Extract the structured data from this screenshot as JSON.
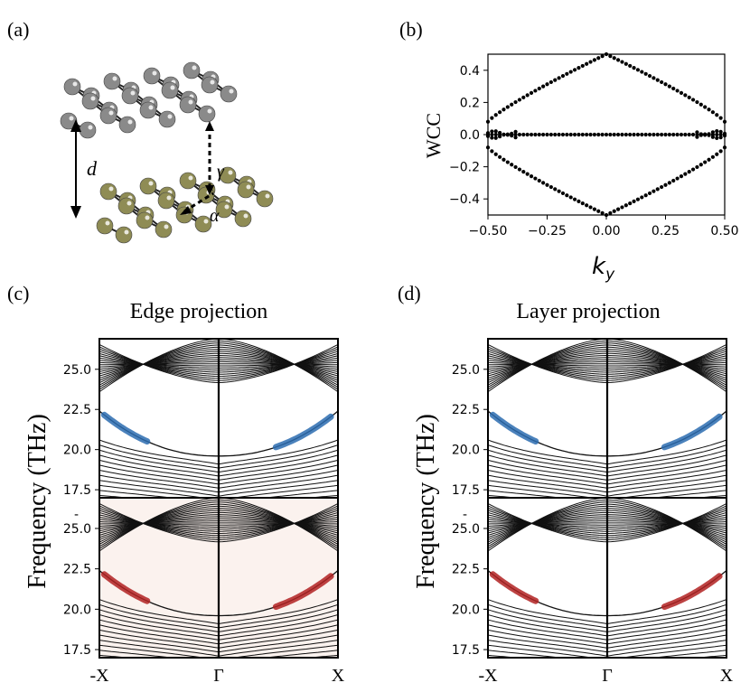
{
  "panels": {
    "a": {
      "label": "(a)",
      "symbols": {
        "d": "d",
        "gamma": "γ",
        "alpha": "α"
      },
      "colors": {
        "top_atoms": "#8a8a8a",
        "bottom_atoms": "#8f8c55",
        "bonds": "#222222",
        "arrow": "#000000"
      }
    },
    "b": {
      "label": "(b)",
      "ylabel": "WCC",
      "xlabel": "k",
      "xlabel_sub": "y",
      "xticks": [
        "−0.50",
        "−0.25",
        "0.00",
        "0.25",
        "0.50"
      ],
      "yticks": [
        "0.4",
        "0.2",
        "0.0",
        "−0.2",
        "−0.4"
      ]
    },
    "c": {
      "label": "(c)",
      "title": "Edge projection"
    },
    "d": {
      "label": "(d)",
      "title": "Layer projection"
    }
  },
  "band_axes": {
    "ylabel": "Frequency (THz)",
    "yticks_top": [
      "25.0",
      "22.5",
      "20.0",
      "17.5"
    ],
    "yticks_bottom": [
      "25.0",
      "22.5",
      "20.0",
      "17.5"
    ],
    "top_minus": "-",
    "xticks": [
      "-X",
      "Γ",
      "X"
    ],
    "colors": {
      "blue": "#2b6cb0",
      "red": "#b22222",
      "bands": "#111111"
    }
  },
  "chart_data": [
    {
      "type": "scatter",
      "title": "",
      "xlabel": "k_y",
      "ylabel": "WCC",
      "xlim": [
        -0.5,
        0.5
      ],
      "ylim": [
        -0.5,
        0.5
      ],
      "series": [
        {
          "name": "upper branch",
          "description": "WCC rising from ~0.08 at k_y=±0.5 to 0.5 at k_y=0"
        },
        {
          "name": "lower branch",
          "description": "WCC falling from ~-0.08 at k_y=±0.5 to -0.5 at k_y=0"
        },
        {
          "name": "flat branch",
          "description": "WCC ≈ 0.0 across all k_y"
        }
      ],
      "sample_points": {
        "x": [
          -0.5,
          -0.4,
          -0.3,
          -0.2,
          -0.1,
          0.0,
          0.1,
          0.2,
          0.3,
          0.4,
          0.5
        ],
        "upper": [
          0.08,
          0.17,
          0.26,
          0.33,
          0.4,
          0.5,
          0.4,
          0.33,
          0.26,
          0.17,
          0.08
        ],
        "lower": [
          -0.08,
          -0.17,
          -0.26,
          -0.33,
          -0.4,
          -0.5,
          -0.4,
          -0.33,
          -0.26,
          -0.17,
          -0.08
        ],
        "flat": [
          0,
          0,
          0,
          0,
          0,
          0,
          0,
          0,
          0,
          0,
          0
        ]
      }
    },
    {
      "type": "line",
      "title": "Edge projection",
      "ylabel": "Frequency (THz)",
      "ylim": [
        17,
        27
      ],
      "xticks": [
        "-X",
        "Γ",
        "X"
      ],
      "subplots": [
        "top: blue projection",
        "bottom: red projection"
      ]
    },
    {
      "type": "line",
      "title": "Layer projection",
      "ylabel": "Frequency (THz)",
      "ylim": [
        17,
        27
      ],
      "xticks": [
        "-X",
        "Γ",
        "X"
      ],
      "subplots": [
        "top: blue projection",
        "bottom: red projection"
      ]
    }
  ]
}
